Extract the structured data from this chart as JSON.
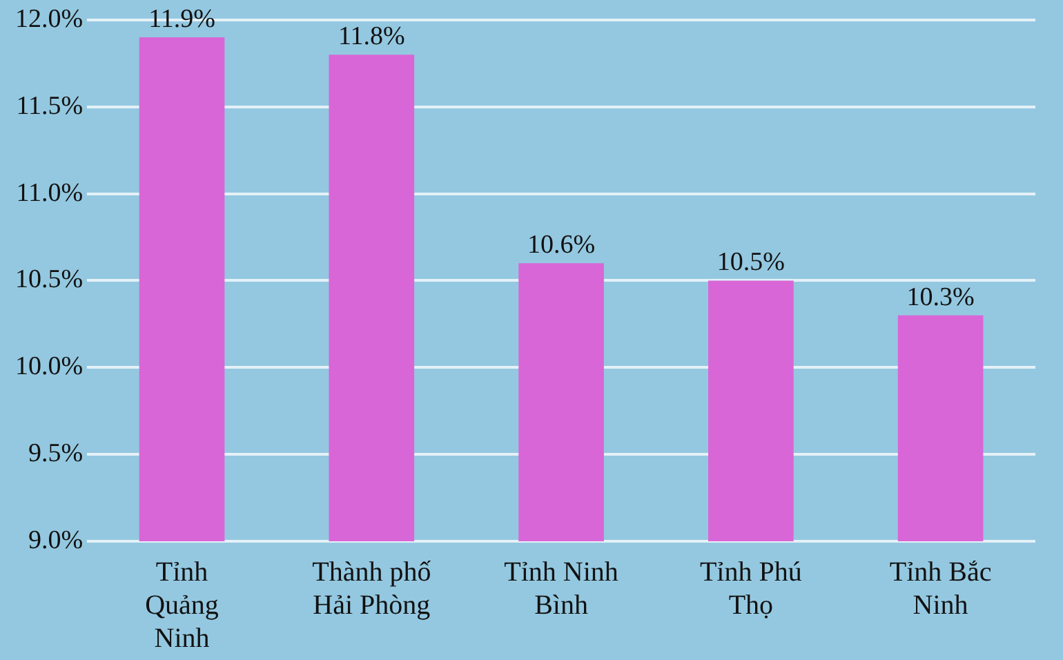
{
  "chart_data": {
    "type": "bar",
    "categories": [
      "Tỉnh Quảng Ninh",
      "Thành phố Hải Phòng",
      "Tỉnh Ninh Bình",
      "Tỉnh Phú Thọ",
      "Tỉnh Bắc Ninh"
    ],
    "values": [
      11.9,
      11.8,
      10.6,
      10.5,
      10.3
    ],
    "color": "#d966d6",
    "value_labels": [
      "11.9%",
      "11.8%",
      "10.6%",
      "10.5%",
      "10.3%"
    ],
    "ylim": [
      9,
      12
    ],
    "yticks": [
      {
        "value": 9,
        "label": "9.0%"
      },
      {
        "value": 9.5,
        "label": "9.5%"
      },
      {
        "value": 10,
        "label": "10.0%"
      },
      {
        "value": 10.5,
        "label": "10.5%"
      },
      {
        "value": 11,
        "label": "11.0%"
      },
      {
        "value": 11.5,
        "label": "11.5%"
      },
      {
        "value": 12,
        "label": "12.0%"
      }
    ],
    "grid": "y",
    "legend": false
  }
}
